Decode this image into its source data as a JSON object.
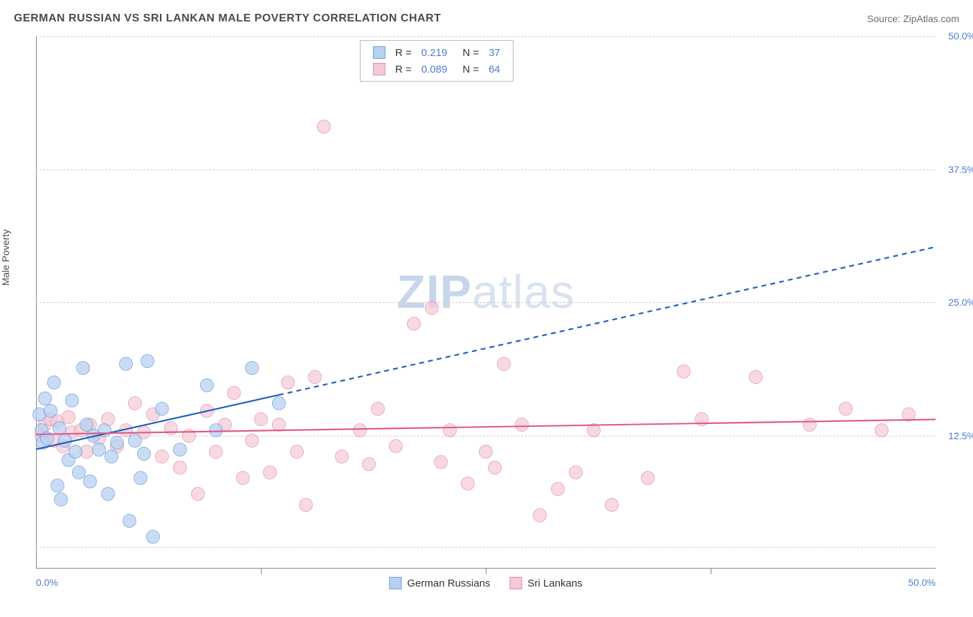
{
  "title": "GERMAN RUSSIAN VS SRI LANKAN MALE POVERTY CORRELATION CHART",
  "source": "Source: ZipAtlas.com",
  "y_axis_label": "Male Poverty",
  "watermark_bold": "ZIP",
  "watermark_rest": "atlas",
  "chart": {
    "type": "scatter",
    "xlim": [
      0,
      50
    ],
    "ylim": [
      0,
      50
    ],
    "x_ticks": [
      0,
      50
    ],
    "x_tick_labels": [
      "0.0%",
      "50.0%"
    ],
    "x_minor_ticks": [
      12.5,
      25,
      37.5
    ],
    "y_ticks": [
      12.5,
      25,
      37.5,
      50
    ],
    "y_tick_labels": [
      "12.5%",
      "25.0%",
      "37.5%",
      "50.0%"
    ],
    "y_extra_gridline": 2,
    "background_color": "#ffffff",
    "grid_color": "#cccccc",
    "axis_color": "#888888",
    "marker_radius": 10,
    "marker_stroke_width": 1.5,
    "series": [
      {
        "name": "German Russians",
        "label": "German Russians",
        "fill": "#b9d1f0",
        "stroke": "#6a9de0",
        "fill_opacity": 0.75,
        "r_value": "0.219",
        "n_value": "37",
        "trend": {
          "x1": 0,
          "y1": 11.2,
          "x2": 13.5,
          "y2": 16.3,
          "dash_x2": 50,
          "dash_y2": 30.2,
          "color": "#1b5fc2",
          "width": 2.2
        },
        "points": [
          [
            0.2,
            14.5
          ],
          [
            0.3,
            13.0
          ],
          [
            0.4,
            11.8
          ],
          [
            0.5,
            16.0
          ],
          [
            0.6,
            12.2
          ],
          [
            0.8,
            14.8
          ],
          [
            1.0,
            17.5
          ],
          [
            1.2,
            7.8
          ],
          [
            1.3,
            13.2
          ],
          [
            1.4,
            6.5
          ],
          [
            1.6,
            12.0
          ],
          [
            1.8,
            10.2
          ],
          [
            2.0,
            15.8
          ],
          [
            2.2,
            11.0
          ],
          [
            2.4,
            9.0
          ],
          [
            2.6,
            18.8
          ],
          [
            2.8,
            13.5
          ],
          [
            3.0,
            8.2
          ],
          [
            3.2,
            12.5
          ],
          [
            3.5,
            11.2
          ],
          [
            3.8,
            13.0
          ],
          [
            4.0,
            7.0
          ],
          [
            4.2,
            10.5
          ],
          [
            4.5,
            11.8
          ],
          [
            5.0,
            19.2
          ],
          [
            5.2,
            4.5
          ],
          [
            5.5,
            12.0
          ],
          [
            5.8,
            8.5
          ],
          [
            6.0,
            10.8
          ],
          [
            6.2,
            19.5
          ],
          [
            6.5,
            3.0
          ],
          [
            7.0,
            15.0
          ],
          [
            8.0,
            11.2
          ],
          [
            9.5,
            17.2
          ],
          [
            10.0,
            13.0
          ],
          [
            12.0,
            18.8
          ],
          [
            13.5,
            15.5
          ]
        ]
      },
      {
        "name": "Sri Lankans",
        "label": "Sri Lankans",
        "fill": "#f5c9d6",
        "stroke": "#e88aa8",
        "fill_opacity": 0.7,
        "r_value": "0.089",
        "n_value": "64",
        "trend": {
          "x1": 0,
          "y1": 12.6,
          "x2": 50,
          "y2": 14.0,
          "color": "#e05a8a",
          "width": 2.2
        },
        "points": [
          [
            0.3,
            12.5
          ],
          [
            0.5,
            13.5
          ],
          [
            0.8,
            14.0
          ],
          [
            1.0,
            12.0
          ],
          [
            1.2,
            13.8
          ],
          [
            1.5,
            11.5
          ],
          [
            1.8,
            14.2
          ],
          [
            2.0,
            12.8
          ],
          [
            2.5,
            13.0
          ],
          [
            2.8,
            11.0
          ],
          [
            3.0,
            13.5
          ],
          [
            3.5,
            12.2
          ],
          [
            4.0,
            14.0
          ],
          [
            4.5,
            11.5
          ],
          [
            5.0,
            13.0
          ],
          [
            5.5,
            15.5
          ],
          [
            6.0,
            12.8
          ],
          [
            6.5,
            14.5
          ],
          [
            7.0,
            10.5
          ],
          [
            7.5,
            13.2
          ],
          [
            8.0,
            9.5
          ],
          [
            8.5,
            12.5
          ],
          [
            9.0,
            7.0
          ],
          [
            9.5,
            14.8
          ],
          [
            10.0,
            11.0
          ],
          [
            10.5,
            13.5
          ],
          [
            11.0,
            16.5
          ],
          [
            11.5,
            8.5
          ],
          [
            12.0,
            12.0
          ],
          [
            12.5,
            14.0
          ],
          [
            13.0,
            9.0
          ],
          [
            13.5,
            13.5
          ],
          [
            14.0,
            17.5
          ],
          [
            14.5,
            11.0
          ],
          [
            15.0,
            6.0
          ],
          [
            15.5,
            18.0
          ],
          [
            16.0,
            41.5
          ],
          [
            17.0,
            10.5
          ],
          [
            18.0,
            13.0
          ],
          [
            18.5,
            9.8
          ],
          [
            19.0,
            15.0
          ],
          [
            20.0,
            11.5
          ],
          [
            21.0,
            23.0
          ],
          [
            22.0,
            24.5
          ],
          [
            22.5,
            10.0
          ],
          [
            23.0,
            13.0
          ],
          [
            24.0,
            8.0
          ],
          [
            25.0,
            11.0
          ],
          [
            25.5,
            9.5
          ],
          [
            26.0,
            19.2
          ],
          [
            27.0,
            13.5
          ],
          [
            28.0,
            5.0
          ],
          [
            29.0,
            7.5
          ],
          [
            30.0,
            9.0
          ],
          [
            31.0,
            13.0
          ],
          [
            32.0,
            6.0
          ],
          [
            34.0,
            8.5
          ],
          [
            36.0,
            18.5
          ],
          [
            37.0,
            14.0
          ],
          [
            40.0,
            18.0
          ],
          [
            43.0,
            13.5
          ],
          [
            45.0,
            15.0
          ],
          [
            47.0,
            13.0
          ],
          [
            48.5,
            14.5
          ]
        ]
      }
    ]
  },
  "legend_top": {
    "r_label": "R =",
    "n_label": "N =",
    "value_color": "#4a7bd0",
    "label_color": "#333333"
  },
  "colors": {
    "title": "#4a4a4a",
    "source": "#6a6a6a",
    "tick": "#4a7bd0"
  }
}
